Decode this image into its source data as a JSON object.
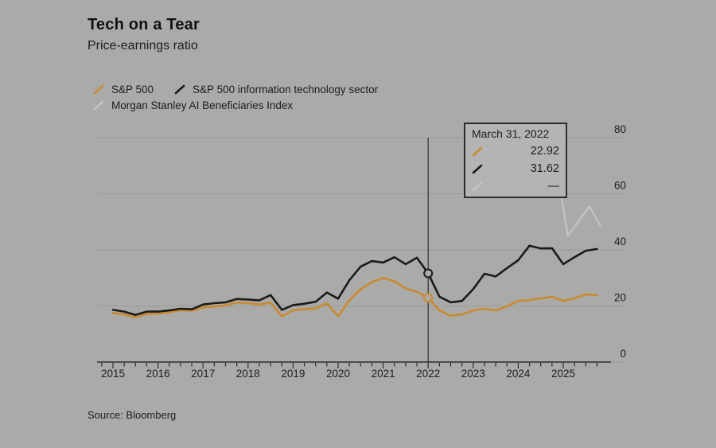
{
  "header": {
    "title": "Tech on a Tear",
    "subtitle": "Price-earnings ratio"
  },
  "legend": {
    "items": [
      {
        "label": "S&P 500",
        "series": 0
      },
      {
        "label": "S&P 500 information technology sector",
        "series": 1
      },
      {
        "label": "Morgan Stanley AI Beneficiaries Index",
        "series": 2
      }
    ]
  },
  "tooltip": {
    "date": "March 31, 2022",
    "rows": [
      {
        "series": 0,
        "display": "22.92"
      },
      {
        "series": 1,
        "display": "31.62"
      },
      {
        "series": 2,
        "display": "—"
      }
    ]
  },
  "source": {
    "text": "Source: Bloomberg"
  },
  "colors": {
    "background": "#aaaaa8",
    "grid": "#9b9b99",
    "axis": "#2c2c2a",
    "text": "#1d1d1d",
    "title_text": "#111111",
    "tooltip_bg": "#b4b4b2",
    "tooltip_border": "#2c2c2a",
    "marker_fill": "#aaaaa8"
  },
  "chart_data": {
    "type": "line",
    "title": "Tech on a Tear",
    "subtitle": "Price-earnings ratio",
    "xlabel": "",
    "ylabel": "Price-earnings ratio",
    "ylim": [
      0,
      80
    ],
    "xlim": [
      2014.65,
      2026.1
    ],
    "yticks": [
      0,
      20,
      40,
      60,
      80
    ],
    "xticks_years": [
      2015,
      2016,
      2017,
      2018,
      2019,
      2020,
      2021,
      2022,
      2023,
      2024,
      2025
    ],
    "grid": "horizontal",
    "legend_position": "top-left",
    "crosshair": {
      "x": 2022.0,
      "label": "March 31, 2022",
      "marker_values": [
        22.92,
        31.62
      ]
    },
    "series": [
      {
        "name": "S&P 500",
        "color": "#ca8a30",
        "x": [
          2015,
          2015.25,
          2015.5,
          2015.75,
          2016,
          2016.25,
          2016.5,
          2016.75,
          2017,
          2017.25,
          2017.5,
          2017.75,
          2018,
          2018.25,
          2018.5,
          2018.75,
          2019,
          2019.25,
          2019.5,
          2019.75,
          2020,
          2020.25,
          2020.5,
          2020.75,
          2021,
          2021.25,
          2021.5,
          2021.75,
          2022,
          2022.25,
          2022.5,
          2022.75,
          2023,
          2023.25,
          2023.5,
          2023.75,
          2024,
          2024.25,
          2024.5,
          2024.75,
          2025,
          2025.25,
          2025.5,
          2025.75
        ],
        "values": [
          17.5,
          17.0,
          16.0,
          17.2,
          17.3,
          17.8,
          18.5,
          18.3,
          19.5,
          19.8,
          20.2,
          21.2,
          21.0,
          20.5,
          21.2,
          16.3,
          18.4,
          18.9,
          19.1,
          21.0,
          16.3,
          22.0,
          26.0,
          28.5,
          30.0,
          28.8,
          26.3,
          25.0,
          22.92,
          18.4,
          16.5,
          17.0,
          18.4,
          19.0,
          18.4,
          19.9,
          21.8,
          22.1,
          22.7,
          23.3,
          21.8,
          22.7,
          24.1,
          23.8
        ]
      },
      {
        "name": "S&P 500 information technology sector",
        "color": "#1b1b19",
        "x": [
          2015,
          2015.25,
          2015.5,
          2015.75,
          2016,
          2016.25,
          2016.5,
          2016.75,
          2017,
          2017.25,
          2017.5,
          2017.75,
          2018,
          2018.25,
          2018.5,
          2018.75,
          2019,
          2019.25,
          2019.5,
          2019.75,
          2020,
          2020.25,
          2020.5,
          2020.75,
          2021,
          2021.25,
          2021.5,
          2021.75,
          2022,
          2022.25,
          2022.5,
          2022.75,
          2023,
          2023.25,
          2023.5,
          2023.75,
          2024,
          2024.25,
          2024.5,
          2024.75,
          2025,
          2025.25,
          2025.5,
          2025.75
        ],
        "values": [
          18.6,
          18.0,
          16.8,
          18.0,
          18.0,
          18.4,
          19.0,
          18.8,
          20.5,
          21.0,
          21.3,
          22.5,
          22.3,
          22.0,
          23.9,
          18.6,
          20.3,
          20.8,
          21.5,
          24.8,
          22.6,
          29.2,
          34.0,
          36.0,
          35.5,
          37.4,
          34.9,
          37.2,
          31.62,
          23.3,
          21.3,
          21.8,
          26.0,
          31.5,
          30.5,
          33.5,
          36.3,
          41.5,
          40.5,
          40.6,
          34.9,
          37.4,
          39.7,
          40.3
        ]
      },
      {
        "name": "Morgan Stanley AI Beneficiaries Index",
        "color": "#c4c4c2",
        "x": [
          2024.85,
          2025.1,
          2025.58,
          2025.83
        ],
        "values": [
          70,
          45,
          55.5,
          48.5
        ]
      }
    ]
  }
}
